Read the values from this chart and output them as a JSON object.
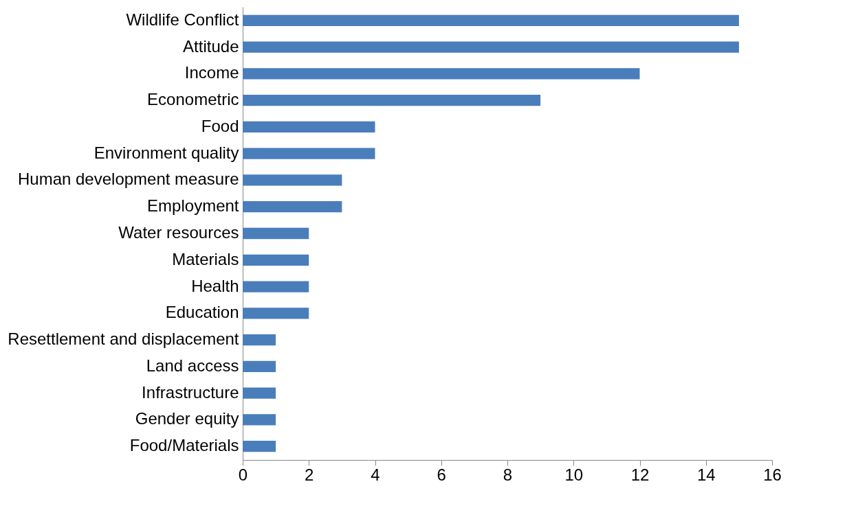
{
  "chart_data": {
    "type": "bar",
    "orientation": "horizontal",
    "categories": [
      "Wildlife Conflict",
      "Attitude",
      "Income",
      "Econometric",
      "Food",
      "Environment quality",
      "Human development measure",
      "Employment",
      "Water resources",
      "Materials",
      "Health",
      "Education",
      "Resettlement and displacement",
      "Land access",
      "Infrastructure",
      "Gender equity",
      "Food/Materials"
    ],
    "values": [
      15,
      15,
      12,
      9,
      4,
      4,
      3,
      3,
      2,
      2,
      2,
      2,
      1,
      1,
      1,
      1,
      1
    ],
    "color": "#4a7ebb",
    "xlim": [
      0,
      16
    ],
    "xticks": [
      0,
      2,
      4,
      6,
      8,
      10,
      12,
      14,
      16
    ],
    "grid": false
  }
}
